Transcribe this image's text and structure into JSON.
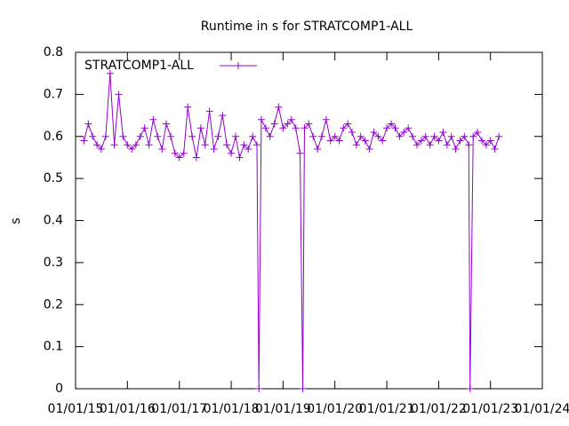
{
  "chart_data": {
    "type": "line",
    "title": "Runtime in s for STRATCOMP1-ALL",
    "y_label": "s",
    "x": [
      "03/01/15",
      "04/01/15",
      "05/01/15",
      "06/01/15",
      "07/01/15",
      "08/01/15",
      "09/01/15",
      "10/01/15",
      "11/01/15",
      "12/01/15",
      "01/01/16",
      "02/01/16",
      "03/01/16",
      "04/01/16",
      "05/01/16",
      "06/01/16",
      "07/01/16",
      "08/01/16",
      "09/01/16",
      "10/01/16",
      "11/01/16",
      "12/01/16",
      "01/01/17",
      "02/01/17",
      "03/01/17",
      "04/01/17",
      "05/01/17",
      "06/01/17",
      "07/01/17",
      "08/01/17",
      "09/01/17",
      "10/01/17",
      "11/01/17",
      "12/01/17",
      "01/01/18",
      "02/01/18",
      "03/01/18",
      "04/01/18",
      "05/01/18",
      "06/01/18",
      "07/01/18",
      "07/15/18",
      "08/01/18",
      "09/01/18",
      "10/01/18",
      "11/01/18",
      "12/01/18",
      "01/01/19",
      "02/01/19",
      "03/01/19",
      "04/01/19",
      "05/01/19",
      "05/20/19",
      "06/01/19",
      "07/01/19",
      "08/01/19",
      "09/01/19",
      "10/01/19",
      "11/01/19",
      "12/01/19",
      "01/01/20",
      "02/01/20",
      "03/01/20",
      "04/01/20",
      "05/01/20",
      "06/01/20",
      "07/01/20",
      "08/01/20",
      "09/01/20",
      "10/01/20",
      "11/01/20",
      "12/01/20",
      "01/01/21",
      "02/01/21",
      "03/01/21",
      "04/01/21",
      "05/01/21",
      "06/01/21",
      "07/01/21",
      "08/01/21",
      "09/01/21",
      "10/01/21",
      "11/01/21",
      "12/01/21",
      "01/01/22",
      "02/01/22",
      "03/01/22",
      "04/01/22",
      "05/01/22",
      "06/01/22",
      "07/01/22",
      "08/01/22",
      "08/10/22",
      "09/01/22",
      "10/01/22",
      "11/01/22",
      "12/01/22",
      "01/01/23",
      "02/01/23",
      "03/01/23"
    ],
    "series": [
      {
        "name": "STRATCOMP1-ALL",
        "color": "#9400d3",
        "values": [
          0.59,
          0.63,
          0.6,
          0.58,
          0.57,
          0.6,
          0.75,
          0.58,
          0.7,
          0.6,
          0.58,
          0.57,
          0.58,
          0.6,
          0.62,
          0.58,
          0.64,
          0.6,
          0.57,
          0.63,
          0.6,
          0.56,
          0.55,
          0.56,
          0.67,
          0.6,
          0.55,
          0.62,
          0.58,
          0.66,
          0.57,
          0.6,
          0.65,
          0.58,
          0.56,
          0.6,
          0.55,
          0.58,
          0.57,
          0.6,
          0.58,
          0,
          0.64,
          0.62,
          0.6,
          0.63,
          0.67,
          0.62,
          0.63,
          0.64,
          0.62,
          0.56,
          0,
          0.62,
          0.63,
          0.6,
          0.57,
          0.6,
          0.64,
          0.59,
          0.6,
          0.59,
          0.62,
          0.63,
          0.61,
          0.58,
          0.6,
          0.59,
          0.57,
          0.61,
          0.6,
          0.59,
          0.62,
          0.63,
          0.62,
          0.6,
          0.61,
          0.62,
          0.6,
          0.58,
          0.59,
          0.6,
          0.58,
          0.6,
          0.59,
          0.61,
          0.58,
          0.6,
          0.57,
          0.59,
          0.6,
          0.58,
          0,
          0.6,
          0.61,
          0.59,
          0.58,
          0.59,
          0.57,
          0.6
        ]
      }
    ],
    "xlim": [
      "01/01/15",
      "01/01/24"
    ],
    "xticks": [
      "01/01/15",
      "01/01/16",
      "01/01/17",
      "01/01/18",
      "01/01/19",
      "01/01/20",
      "01/01/21",
      "01/01/22",
      "01/01/23",
      "01/01/24"
    ],
    "ylim": [
      0,
      0.8
    ],
    "yticks": [
      0,
      0.1,
      0.2,
      0.3,
      0.4,
      0.5,
      0.6,
      0.7,
      0.8
    ],
    "legend": "top-left"
  }
}
